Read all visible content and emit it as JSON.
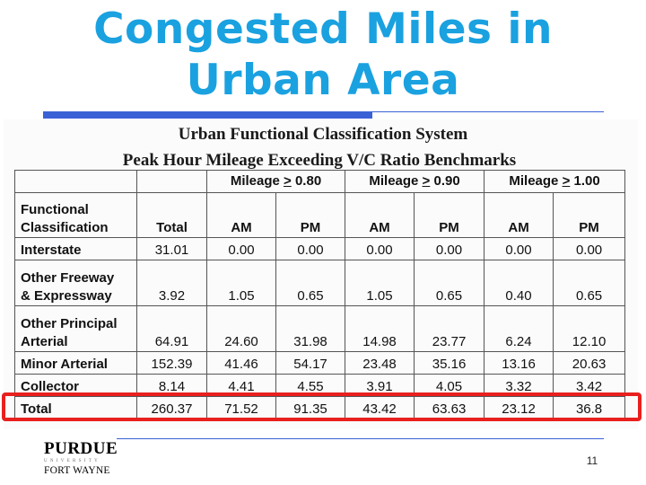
{
  "slide": {
    "title_line1": "Congested Miles in",
    "title_line2": "Urban Area",
    "page_number": "11"
  },
  "table": {
    "heading1": "Urban Functional Classification System",
    "heading2": "Peak Hour Mileage Exceeding V/C Ratio Benchmarks",
    "groups": [
      {
        "prefix": "Mileage ",
        "op": ">",
        "value": " 0.80"
      },
      {
        "prefix": "Mileage ",
        "op": ">",
        "value": " 0.90"
      },
      {
        "prefix": "Mileage ",
        "op": ">",
        "value": " 1.00"
      }
    ],
    "headers": {
      "class_line1": "Functional",
      "class_line2": "Classification",
      "cols": [
        "Total",
        "AM",
        "PM",
        "AM",
        "PM",
        "AM",
        "PM"
      ]
    },
    "rows": [
      {
        "label": [
          "Interstate"
        ],
        "values": [
          "31.01",
          "0.00",
          "0.00",
          "0.00",
          "0.00",
          "0.00",
          "0.00"
        ]
      },
      {
        "label": [
          "Other Freeway",
          "& Expressway"
        ],
        "values": [
          "3.92",
          "1.05",
          "0.65",
          "1.05",
          "0.65",
          "0.40",
          "0.65"
        ]
      },
      {
        "label": [
          "Other Principal",
          "Arterial"
        ],
        "values": [
          "64.91",
          "24.60",
          "31.98",
          "14.98",
          "23.77",
          "6.24",
          "12.10"
        ]
      },
      {
        "label": [
          "Minor Arterial"
        ],
        "values": [
          "152.39",
          "41.46",
          "54.17",
          "23.48",
          "35.16",
          "13.16",
          "20.63"
        ]
      },
      {
        "label": [
          "Collector"
        ],
        "values": [
          "8.14",
          "4.41",
          "4.55",
          "3.91",
          "4.05",
          "3.32",
          "3.42"
        ]
      },
      {
        "label": [
          "Total"
        ],
        "values": [
          "260.37",
          "71.52",
          "91.35",
          "43.42",
          "63.63",
          "23.12",
          "36.8"
        ]
      }
    ]
  },
  "logo": {
    "line1": "PURDUE",
    "line2": "UNIVERSITY",
    "line3": "FORT WAYNE"
  },
  "colors": {
    "title": "#1aa1e0",
    "accent": "#3a62d6",
    "highlight": "#e8201e"
  }
}
